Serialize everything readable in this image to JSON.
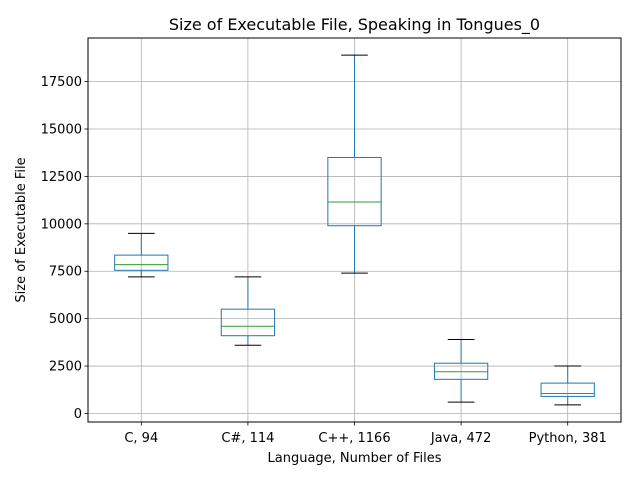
{
  "chart_data": {
    "type": "box",
    "title": "Size of Executable File, Speaking in Tongues_0",
    "xlabel": "Language, Number of Files",
    "ylabel": "Size of Executable File",
    "ylim": [
      -450,
      19800
    ],
    "yticks": [
      0,
      2500,
      5000,
      7500,
      10000,
      12500,
      15000,
      17500
    ],
    "ytick_labels": [
      "0",
      "2500",
      "5000",
      "7500",
      "10000",
      "12500",
      "15000",
      "17500"
    ],
    "grid": true,
    "categories": [
      "C, 94",
      "C#, 114",
      "C++, 1166",
      "Java, 472",
      "Python, 381"
    ],
    "boxes": [
      {
        "whisker_low": 7200,
        "q1": 7550,
        "median": 7850,
        "q3": 8350,
        "whisker_high": 9500
      },
      {
        "whisker_low": 3600,
        "q1": 4100,
        "median": 4600,
        "q3": 5500,
        "whisker_high": 7200
      },
      {
        "whisker_low": 7400,
        "q1": 9900,
        "median": 11150,
        "q3": 13500,
        "whisker_high": 18900
      },
      {
        "whisker_low": 600,
        "q1": 1800,
        "median": 2200,
        "q3": 2650,
        "whisker_high": 3900
      },
      {
        "whisker_low": 450,
        "q1": 900,
        "median": 1050,
        "q3": 1600,
        "whisker_high": 2500
      }
    ],
    "colors": {
      "box": "#1f77b4",
      "median": "#2ca02c",
      "cap": "#000000",
      "grid": "#b0b0b0"
    }
  }
}
